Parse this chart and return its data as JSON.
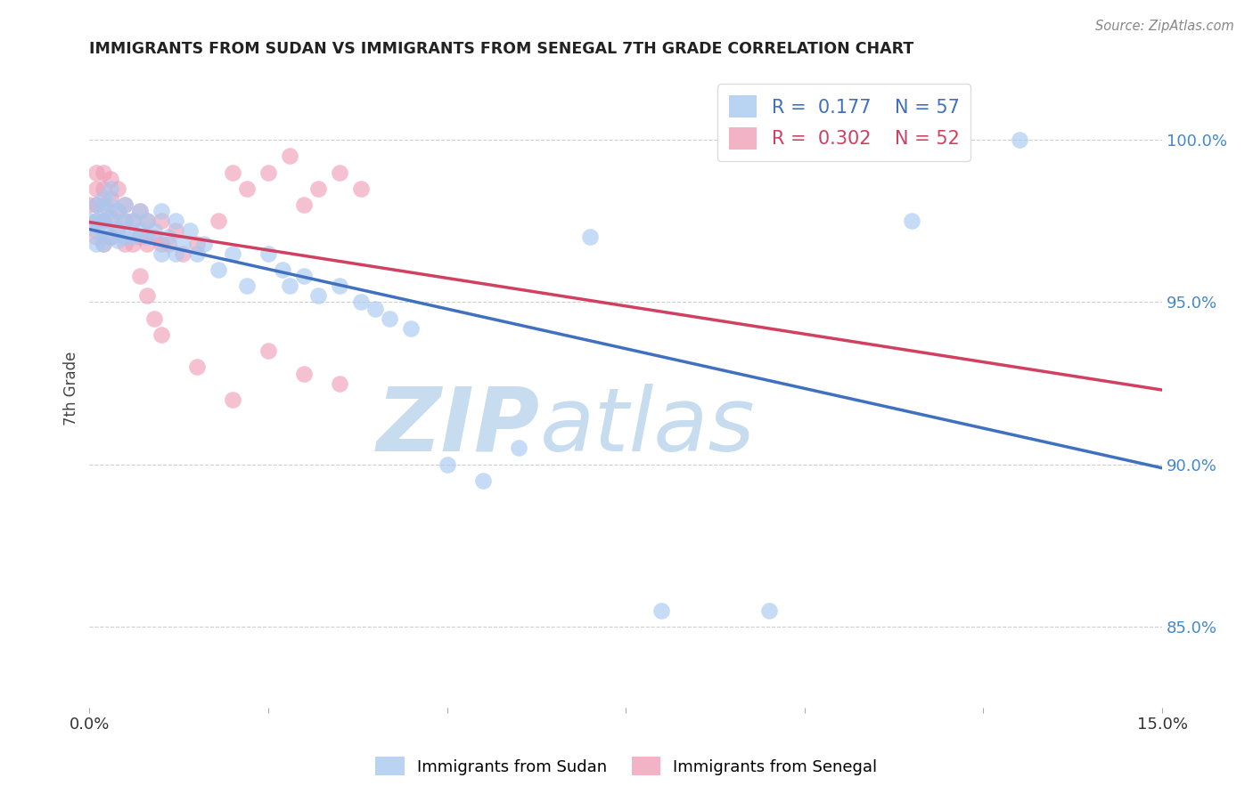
{
  "title": "IMMIGRANTS FROM SUDAN VS IMMIGRANTS FROM SENEGAL 7TH GRADE CORRELATION CHART",
  "source": "Source: ZipAtlas.com",
  "ylabel": "7th Grade",
  "right_ytick_labels": [
    "100.0%",
    "95.0%",
    "90.0%",
    "85.0%"
  ],
  "right_ytick_values": [
    1.0,
    0.95,
    0.9,
    0.85
  ],
  "xlim": [
    0.0,
    0.15
  ],
  "ylim": [
    0.825,
    1.022
  ],
  "legend_sudan_R": "0.177",
  "legend_sudan_N": "57",
  "legend_senegal_R": "0.302",
  "legend_senegal_N": "52",
  "color_sudan": "#A8C8F0",
  "color_senegal": "#F0A0B8",
  "line_color_sudan": "#4070C0",
  "line_color_senegal": "#D04060",
  "watermark_zip_color": "#C8DCF0",
  "watermark_atlas_color": "#C8DCF0",
  "grid_color": "#BBBBBB",
  "right_axis_label_color": "#4488CC",
  "title_color": "#222222",
  "sudan_x": [
    0.0,
    0.001,
    0.001,
    0.001,
    0.001,
    0.002,
    0.002,
    0.002,
    0.002,
    0.002,
    0.003,
    0.003,
    0.003,
    0.003,
    0.004,
    0.004,
    0.004,
    0.005,
    0.005,
    0.005,
    0.006,
    0.006,
    0.007,
    0.007,
    0.008,
    0.008,
    0.009,
    0.01,
    0.01,
    0.011,
    0.012,
    0.012,
    0.013,
    0.014,
    0.015,
    0.016,
    0.018,
    0.02,
    0.022,
    0.025,
    0.027,
    0.028,
    0.03,
    0.032,
    0.035,
    0.038,
    0.04,
    0.042,
    0.045,
    0.05,
    0.055,
    0.06,
    0.07,
    0.08,
    0.095,
    0.115,
    0.13
  ],
  "sudan_y": [
    0.975,
    0.98,
    0.975,
    0.972,
    0.968,
    0.982,
    0.978,
    0.975,
    0.972,
    0.968,
    0.985,
    0.98,
    0.975,
    0.97,
    0.978,
    0.973,
    0.969,
    0.98,
    0.975,
    0.97,
    0.975,
    0.97,
    0.978,
    0.972,
    0.975,
    0.97,
    0.972,
    0.978,
    0.965,
    0.97,
    0.975,
    0.965,
    0.968,
    0.972,
    0.965,
    0.968,
    0.96,
    0.965,
    0.955,
    0.965,
    0.96,
    0.955,
    0.958,
    0.952,
    0.955,
    0.95,
    0.948,
    0.945,
    0.942,
    0.9,
    0.895,
    0.905,
    0.97,
    0.855,
    0.855,
    0.975,
    1.0
  ],
  "senegal_x": [
    0.0,
    0.001,
    0.001,
    0.001,
    0.001,
    0.001,
    0.002,
    0.002,
    0.002,
    0.002,
    0.002,
    0.003,
    0.003,
    0.003,
    0.003,
    0.004,
    0.004,
    0.004,
    0.005,
    0.005,
    0.005,
    0.006,
    0.006,
    0.007,
    0.007,
    0.008,
    0.008,
    0.009,
    0.01,
    0.01,
    0.011,
    0.012,
    0.013,
    0.015,
    0.018,
    0.02,
    0.022,
    0.025,
    0.028,
    0.03,
    0.032,
    0.035,
    0.038,
    0.01,
    0.015,
    0.02,
    0.025,
    0.03,
    0.035,
    0.007,
    0.008,
    0.009
  ],
  "senegal_y": [
    0.98,
    0.99,
    0.985,
    0.98,
    0.975,
    0.97,
    0.99,
    0.985,
    0.98,
    0.975,
    0.968,
    0.988,
    0.982,
    0.976,
    0.97,
    0.985,
    0.978,
    0.972,
    0.98,
    0.975,
    0.968,
    0.975,
    0.968,
    0.978,
    0.97,
    0.975,
    0.968,
    0.97,
    0.975,
    0.968,
    0.968,
    0.972,
    0.965,
    0.968,
    0.975,
    0.99,
    0.985,
    0.99,
    0.995,
    0.98,
    0.985,
    0.99,
    0.985,
    0.94,
    0.93,
    0.92,
    0.935,
    0.928,
    0.925,
    0.958,
    0.952,
    0.945
  ]
}
